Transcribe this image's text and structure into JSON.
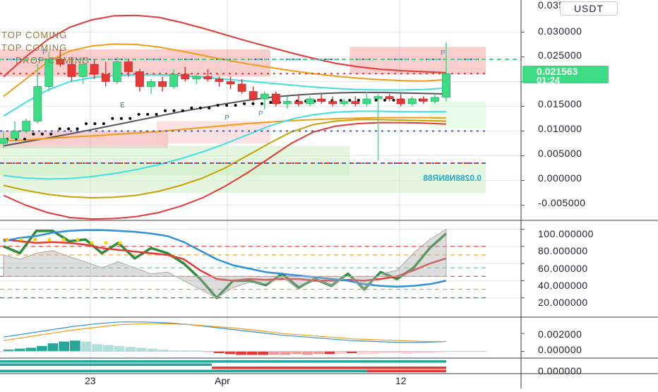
{
  "header": {
    "currency_label": "USDT"
  },
  "main_price_panel": {
    "y_ticks": [
      "0.030000",
      "0.025000",
      "0.020000",
      "0.015000",
      "0.010000",
      "0.005000",
      "0.000000",
      "-0.005000"
    ],
    "y_tick_top_partial": "0.035000",
    "last_price": "0.021563",
    "countdown": "01:24",
    "overlay_labels": [
      "TOP COMING",
      "TOP COMING",
      "DROP COMING"
    ],
    "mirrored_label": "0.0288N8NR88",
    "marker_letters": [
      "P",
      "E",
      "P",
      "P",
      "P"
    ]
  },
  "oscillator_panel": {
    "y_ticks": [
      "100.000000",
      "80.000000",
      "60.000000",
      "40.000000",
      "20.000000"
    ]
  },
  "macd_panel": {
    "y_ticks": [
      "0.002000",
      "0.000000"
    ]
  },
  "strip_panel": {
    "y_ticks": [
      "0.000000"
    ]
  },
  "x_axis": {
    "labels": [
      "23",
      "Apr",
      "12"
    ]
  },
  "colors": {
    "bull": "#3ddc84",
    "bear": "#e53935",
    "accent_badge": "#3ddc84",
    "grid": "#e6e8ee"
  },
  "chart_data": [
    {
      "type": "candlestick",
      "title": "",
      "ylim": [
        -0.0075,
        0.0365
      ],
      "y_ticks": [
        0.03,
        0.025,
        0.02,
        0.015,
        0.01,
        0.005,
        0.0,
        -0.005
      ],
      "x_tick_labels": [
        "23",
        "Apr",
        "12"
      ],
      "candles": [
        {
          "o": 0.0075,
          "h": 0.01,
          "l": 0.0065,
          "c": 0.0085
        },
        {
          "o": 0.0085,
          "h": 0.012,
          "l": 0.008,
          "c": 0.01
        },
        {
          "o": 0.01,
          "h": 0.0125,
          "l": 0.0095,
          "c": 0.012
        },
        {
          "o": 0.012,
          "h": 0.0235,
          "l": 0.0115,
          "c": 0.019
        },
        {
          "o": 0.019,
          "h": 0.026,
          "l": 0.018,
          "c": 0.0245
        },
        {
          "o": 0.0245,
          "h": 0.0265,
          "l": 0.023,
          "c": 0.0235
        },
        {
          "o": 0.0235,
          "h": 0.025,
          "l": 0.02,
          "c": 0.021
        },
        {
          "o": 0.021,
          "h": 0.025,
          "l": 0.0195,
          "c": 0.0235
        },
        {
          "o": 0.0235,
          "h": 0.0245,
          "l": 0.0205,
          "c": 0.0215
        },
        {
          "o": 0.0215,
          "h": 0.024,
          "l": 0.019,
          "c": 0.02
        },
        {
          "o": 0.02,
          "h": 0.025,
          "l": 0.0195,
          "c": 0.024
        },
        {
          "o": 0.024,
          "h": 0.0245,
          "l": 0.021,
          "c": 0.022
        },
        {
          "o": 0.022,
          "h": 0.0225,
          "l": 0.018,
          "c": 0.019
        },
        {
          "o": 0.019,
          "h": 0.0205,
          "l": 0.0175,
          "c": 0.02
        },
        {
          "o": 0.02,
          "h": 0.021,
          "l": 0.018,
          "c": 0.019
        },
        {
          "o": 0.019,
          "h": 0.0225,
          "l": 0.0185,
          "c": 0.0215
        },
        {
          "o": 0.0215,
          "h": 0.023,
          "l": 0.02,
          "c": 0.0205
        },
        {
          "o": 0.0205,
          "h": 0.0215,
          "l": 0.0195,
          "c": 0.021
        },
        {
          "o": 0.021,
          "h": 0.0225,
          "l": 0.02,
          "c": 0.0205
        },
        {
          "o": 0.0205,
          "h": 0.021,
          "l": 0.019,
          "c": 0.02
        },
        {
          "o": 0.02,
          "h": 0.021,
          "l": 0.0185,
          "c": 0.0195
        },
        {
          "o": 0.0195,
          "h": 0.0205,
          "l": 0.0175,
          "c": 0.018
        },
        {
          "o": 0.018,
          "h": 0.019,
          "l": 0.016,
          "c": 0.0165
        },
        {
          "o": 0.0165,
          "h": 0.018,
          "l": 0.0145,
          "c": 0.0175
        },
        {
          "o": 0.0175,
          "h": 0.018,
          "l": 0.015,
          "c": 0.0155
        },
        {
          "o": 0.0155,
          "h": 0.017,
          "l": 0.0145,
          "c": 0.016
        },
        {
          "o": 0.016,
          "h": 0.0175,
          "l": 0.015,
          "c": 0.0155
        },
        {
          "o": 0.0155,
          "h": 0.017,
          "l": 0.015,
          "c": 0.0165
        },
        {
          "o": 0.0165,
          "h": 0.0175,
          "l": 0.0155,
          "c": 0.016
        },
        {
          "o": 0.016,
          "h": 0.017,
          "l": 0.015,
          "c": 0.0155
        },
        {
          "o": 0.0155,
          "h": 0.0165,
          "l": 0.015,
          "c": 0.016
        },
        {
          "o": 0.016,
          "h": 0.017,
          "l": 0.015,
          "c": 0.0155
        },
        {
          "o": 0.0155,
          "h": 0.018,
          "l": 0.015,
          "c": 0.0165
        },
        {
          "o": 0.0165,
          "h": 0.0175,
          "l": 0.004,
          "c": 0.017
        },
        {
          "o": 0.017,
          "h": 0.0175,
          "l": 0.016,
          "c": 0.0165
        },
        {
          "o": 0.0165,
          "h": 0.0175,
          "l": 0.015,
          "c": 0.0155
        },
        {
          "o": 0.0155,
          "h": 0.017,
          "l": 0.015,
          "c": 0.0165
        },
        {
          "o": 0.0165,
          "h": 0.017,
          "l": 0.0155,
          "c": 0.016
        },
        {
          "o": 0.016,
          "h": 0.0175,
          "l": 0.0155,
          "c": 0.0168
        },
        {
          "o": 0.0168,
          "h": 0.028,
          "l": 0.016,
          "c": 0.0216
        }
      ],
      "series": [
        {
          "name": "",
          "color": "#e53935",
          "values": [
            0.021,
            0.025,
            0.0285,
            0.031,
            0.0325,
            0.0333,
            0.0334,
            0.033,
            0.032,
            0.0308,
            0.0295,
            0.0282,
            0.027,
            0.0258,
            0.0247,
            0.0237,
            0.023,
            0.0225,
            0.0222,
            0.022,
            0.0218
          ]
        },
        {
          "name": "",
          "color": "#f39c12",
          "values": [
            0.017,
            0.0205,
            0.024,
            0.0262,
            0.0272,
            0.0276,
            0.0275,
            0.027,
            0.0262,
            0.0253,
            0.0244,
            0.0236,
            0.0229,
            0.0222,
            0.0216,
            0.0211,
            0.0207,
            0.0204,
            0.0202,
            0.0201,
            0.0204
          ]
        },
        {
          "name": "",
          "color": "#40e0e0",
          "values": [
            0.013,
            0.0158,
            0.0183,
            0.02,
            0.0208,
            0.0212,
            0.0214,
            0.0214,
            0.0212,
            0.0209,
            0.0205,
            0.0201,
            0.0197,
            0.0193,
            0.0189,
            0.0186,
            0.0184,
            0.0183,
            0.0183,
            0.0184,
            0.0187
          ]
        },
        {
          "name": "",
          "color": "#555555",
          "values": [
            0.007,
            0.0078,
            0.0086,
            0.0094,
            0.0103,
            0.0112,
            0.0121,
            0.013,
            0.0139,
            0.0147,
            0.0155,
            0.0162,
            0.0168,
            0.0172,
            0.0175,
            0.0177,
            0.0178,
            0.0178,
            0.0177,
            0.0176,
            0.0175
          ]
        },
        {
          "name": "",
          "color": "#f39c12",
          "values": [
            0.008,
            0.0082,
            0.0085,
            0.0088,
            0.009,
            0.0093,
            0.0096,
            0.0099,
            0.0103,
            0.0107,
            0.0111,
            0.0115,
            0.0118,
            0.0121,
            0.0123,
            0.0125,
            0.0126,
            0.0127,
            0.0127,
            0.0127,
            0.0126
          ]
        },
        {
          "name": "",
          "color": "#40e0e0",
          "values": [
            0.001,
            0.0005,
            0.0003,
            0.0004,
            0.0008,
            0.0014,
            0.0022,
            0.0032,
            0.0044,
            0.0058,
            0.0074,
            0.0092,
            0.011,
            0.0124,
            0.0133,
            0.0138,
            0.014,
            0.014,
            0.0139,
            0.0139,
            0.0139
          ]
        },
        {
          "name": "",
          "color": "#c8a000",
          "values": [
            -0.001,
            -0.002,
            -0.0028,
            -0.0033,
            -0.0035,
            -0.0034,
            -0.003,
            -0.0022,
            -0.001,
            0.0005,
            0.0025,
            0.005,
            0.0075,
            0.0098,
            0.0113,
            0.012,
            0.0123,
            0.0123,
            0.0122,
            0.0121,
            0.012
          ]
        },
        {
          "name": "",
          "color": "#e53935",
          "values": [
            -0.003,
            -0.005,
            -0.0065,
            -0.0075,
            -0.0078,
            -0.0077,
            -0.0073,
            -0.0065,
            -0.0052,
            -0.0035,
            -0.0012,
            0.0015,
            0.0045,
            0.0075,
            0.0098,
            0.011,
            0.0115,
            0.0117,
            0.0117,
            0.0116,
            0.0114
          ]
        }
      ],
      "dotted_line": {
        "color": "#000000",
        "values": [
          0.0095,
          0.0105,
          0.0115,
          0.0125,
          0.0135,
          0.0143,
          0.015,
          0.0155,
          0.016,
          0.0163,
          0.0165,
          0.0167,
          0.0168,
          0.0168,
          0.0168,
          0.0168
        ]
      },
      "horizontal_levels": [
        {
          "value": 0.0245,
          "color": "#3a5fcd",
          "style": "dotted"
        },
        {
          "value": 0.0245,
          "color": "#3ddc84",
          "style": "dashed"
        },
        {
          "value": 0.01,
          "color": "#3a5fcd",
          "style": "dotted"
        },
        {
          "value": 0.0035,
          "color": "#e53935",
          "style": "dashed"
        },
        {
          "value": 0.0035,
          "color": "#3a5fcd",
          "style": "dotted"
        },
        {
          "value": 0.0216,
          "color": "#e53935",
          "style": "dotted"
        }
      ],
      "zones": [
        {
          "x0": 0,
          "x1": 23,
          "y0": 0.0265,
          "y1": 0.021,
          "color": "#f4a6a6"
        },
        {
          "x0": 0,
          "x1": 14,
          "y0": 0.01,
          "y1": 0.0065,
          "color": "#f4a6a6"
        },
        {
          "x0": 14,
          "x1": 23,
          "y0": 0.012,
          "y1": 0.0075,
          "color": "#f8c9c9"
        },
        {
          "x0": 31,
          "x1": 42,
          "y0": 0.027,
          "y1": 0.0215,
          "color": "#f4a6a6"
        },
        {
          "x0": 0,
          "x1": 30,
          "y0": 0.007,
          "y1": 0.001,
          "color": "#cdeec4"
        },
        {
          "x0": 0,
          "x1": 42,
          "y0": 0.0035,
          "y1": -0.0025,
          "color": "#cdeec4"
        },
        {
          "x0": 38,
          "x1": 42,
          "y0": 0.016,
          "y1": 0.0105,
          "color": "#d6f7d6"
        }
      ]
    },
    {
      "type": "line",
      "title": "",
      "ylim": [
        0,
        107
      ],
      "y_ticks": [
        100,
        80,
        60,
        40,
        20
      ],
      "series": [
        {
          "name": "",
          "color": "#2e8b3a",
          "values": [
            80,
            72,
            98,
            98,
            86,
            88,
            72,
            84,
            66,
            78,
            72,
            60,
            42,
            20,
            40,
            40,
            35,
            48,
            32,
            42,
            34,
            48,
            30,
            50,
            42,
            55,
            78,
            95
          ]
        },
        {
          "name": "",
          "color": "#e53935",
          "values": [
            88,
            86,
            84,
            85,
            84,
            82,
            78,
            76,
            74,
            72,
            70,
            65,
            52,
            42,
            40,
            42,
            41,
            42,
            42,
            40,
            40,
            41,
            40,
            42,
            45,
            52,
            60,
            66
          ]
        },
        {
          "name": "",
          "color": "#2f8fd8",
          "values": [
            86,
            90,
            92,
            96,
            98,
            99,
            99,
            98,
            97,
            95,
            92,
            85,
            75,
            65,
            58,
            54,
            50,
            48,
            46,
            44,
            42,
            40,
            36,
            34,
            33,
            34,
            36,
            40
          ]
        },
        {
          "name": "",
          "color": "#aaaaaa",
          "values": [
            70,
            65,
            72,
            75,
            68,
            62,
            55,
            62,
            55,
            48,
            50,
            40,
            30,
            20,
            32,
            38,
            36,
            44,
            30,
            42,
            34,
            46,
            30,
            48,
            52,
            72,
            88,
            100
          ]
        }
      ],
      "levels": [
        {
          "value": 80,
          "color": "#e53935"
        },
        {
          "value": 70,
          "color": "#f39c12"
        },
        {
          "value": 55,
          "color": "#3ddc84"
        },
        {
          "value": 45,
          "color": "#e53935"
        },
        {
          "value": 30,
          "color": "#f39c12"
        },
        {
          "value": 20,
          "color": "#2e8b3a"
        }
      ]
    },
    {
      "type": "bar",
      "title": "",
      "ylim": [
        -0.0006,
        0.0036
      ],
      "y_ticks": [
        0.002,
        0.0
      ],
      "values": [
        0.0002,
        0.0003,
        0.0004,
        0.0006,
        0.0009,
        0.0011,
        0.0012,
        0.0011,
        0.0008,
        0.0007,
        0.0006,
        0.0005,
        0.0004,
        0.0003,
        0.0002,
        0.0001,
        0.0001,
        0.0001,
        0.0,
        -0.0002,
        -0.0003,
        -0.0004,
        -0.0004,
        -0.0004,
        -0.0004,
        -0.0004,
        -0.0003,
        -0.0004,
        -0.0003,
        -0.0003,
        -0.0003,
        -0.0002,
        -0.0003,
        -0.0003,
        -0.0002,
        -0.0002,
        -0.0003,
        -0.0002,
        -0.0002,
        -0.0001
      ],
      "series": [
        {
          "name": "",
          "color": "#2f8fd8",
          "values": [
            0.0016,
            0.002,
            0.0024,
            0.0028,
            0.0031,
            0.0033,
            0.0033,
            0.0032,
            0.003,
            0.0027,
            0.0024,
            0.0021,
            0.0018,
            0.0016,
            0.0014,
            0.0012,
            0.0011,
            0.001,
            0.001,
            0.0011
          ]
        },
        {
          "name": "",
          "color": "#f39c12",
          "values": [
            0.0012,
            0.0016,
            0.002,
            0.0024,
            0.0027,
            0.003,
            0.0031,
            0.0031,
            0.003,
            0.0028,
            0.0026,
            0.0023,
            0.002,
            0.0018,
            0.0016,
            0.0014,
            0.0013,
            0.0012,
            0.0011,
            0.0011
          ]
        }
      ]
    }
  ]
}
